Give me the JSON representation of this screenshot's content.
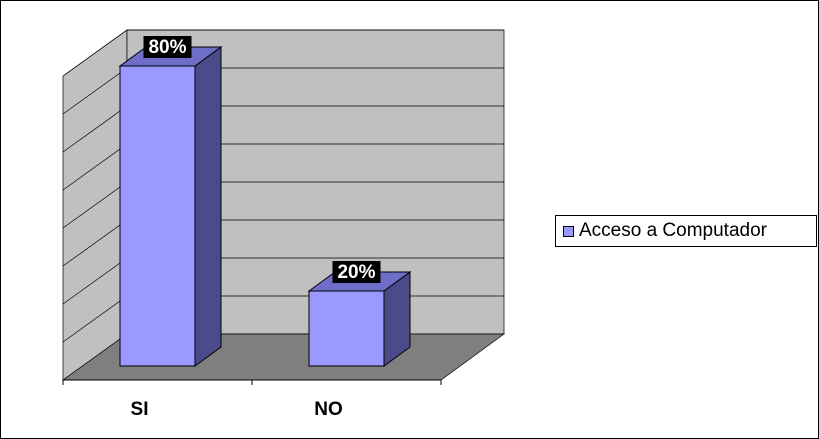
{
  "chart_data": {
    "type": "bar",
    "categories": [
      "SI",
      "NO"
    ],
    "series": [
      {
        "name": "Acceso a Computador",
        "values": [
          80,
          20
        ]
      }
    ],
    "data_labels": [
      "80%",
      "20%"
    ],
    "ylim": [
      0,
      80
    ],
    "grid": true,
    "legend_position": "right",
    "colors": {
      "bar_front": "#9999ff",
      "bar_side": "#4b4b8a",
      "bar_top": "#6e6ec8",
      "wall": "#c0c0c0",
      "floor": "#7f7f7f",
      "label_bg": "#000000",
      "label_fg": "#ffffff"
    }
  }
}
